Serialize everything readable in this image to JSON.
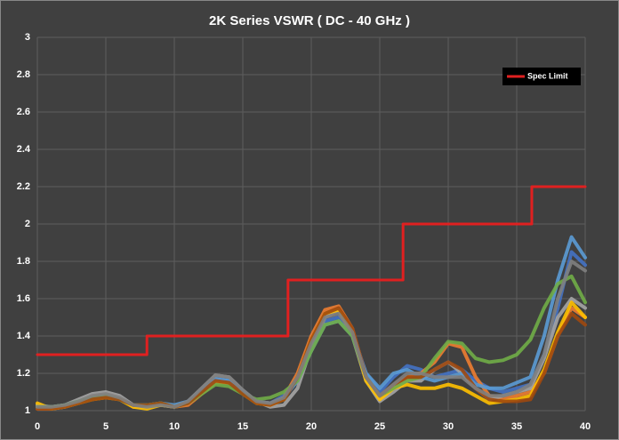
{
  "chart_data": {
    "type": "line",
    "title": "2K Series VSWR ( DC - 40 GHz )",
    "x": [
      0,
      1,
      2,
      3,
      4,
      5,
      6,
      7,
      8,
      9,
      10,
      11,
      12,
      13,
      14,
      15,
      16,
      17,
      18,
      19,
      20,
      21,
      22,
      23,
      24,
      25,
      26,
      27,
      28,
      29,
      30,
      31,
      32,
      33,
      34,
      35,
      36,
      37,
      38,
      39,
      40
    ],
    "xlim": [
      0,
      40
    ],
    "xticks": [
      0,
      5,
      10,
      15,
      20,
      25,
      30,
      35,
      40
    ],
    "ylim": [
      1,
      3
    ],
    "yticks": [
      1,
      1.2,
      1.4,
      1.6,
      1.8,
      2,
      2.2,
      2.4,
      2.6,
      2.8,
      3
    ],
    "grid": true,
    "legend": "top-right",
    "series": [
      {
        "color": "#4472c4",
        "values": [
          1.02,
          1.01,
          1.02,
          1.04,
          1.07,
          1.08,
          1.07,
          1.03,
          1.03,
          1.04,
          1.02,
          1.04,
          1.1,
          1.17,
          1.16,
          1.1,
          1.04,
          1.04,
          1.08,
          1.18,
          1.36,
          1.48,
          1.5,
          1.42,
          1.2,
          1.1,
          1.18,
          1.24,
          1.22,
          1.18,
          1.2,
          1.22,
          1.16,
          1.12,
          1.1,
          1.12,
          1.14,
          1.3,
          1.55,
          1.85,
          1.78
        ]
      },
      {
        "color": "#ed7d31",
        "values": [
          1.01,
          1.01,
          1.02,
          1.05,
          1.08,
          1.09,
          1.07,
          1.02,
          1.02,
          1.04,
          1.02,
          1.03,
          1.09,
          1.15,
          1.15,
          1.1,
          1.05,
          1.04,
          1.07,
          1.2,
          1.4,
          1.54,
          1.56,
          1.44,
          1.18,
          1.06,
          1.12,
          1.18,
          1.2,
          1.26,
          1.36,
          1.34,
          1.18,
          1.08,
          1.06,
          1.08,
          1.1,
          1.2,
          1.4,
          1.55,
          1.5
        ]
      },
      {
        "color": "#a5a5a5",
        "values": [
          1.03,
          1.02,
          1.03,
          1.06,
          1.09,
          1.1,
          1.08,
          1.03,
          1.02,
          1.03,
          1.02,
          1.05,
          1.12,
          1.19,
          1.18,
          1.11,
          1.05,
          1.02,
          1.03,
          1.12,
          1.34,
          1.5,
          1.54,
          1.4,
          1.16,
          1.05,
          1.1,
          1.16,
          1.16,
          1.22,
          1.26,
          1.2,
          1.12,
          1.06,
          1.08,
          1.1,
          1.12,
          1.28,
          1.5,
          1.6,
          1.55
        ]
      },
      {
        "color": "#ffc000",
        "values": [
          1.04,
          1.01,
          1.02,
          1.04,
          1.06,
          1.07,
          1.06,
          1.02,
          1.01,
          1.03,
          1.02,
          1.04,
          1.1,
          1.16,
          1.15,
          1.09,
          1.04,
          1.03,
          1.06,
          1.18,
          1.38,
          1.52,
          1.54,
          1.42,
          1.16,
          1.06,
          1.12,
          1.14,
          1.12,
          1.12,
          1.14,
          1.12,
          1.08,
          1.04,
          1.05,
          1.06,
          1.08,
          1.22,
          1.42,
          1.58,
          1.5
        ]
      },
      {
        "color": "#5b9bd5",
        "values": [
          1.02,
          1.02,
          1.03,
          1.05,
          1.07,
          1.08,
          1.06,
          1.03,
          1.03,
          1.04,
          1.03,
          1.05,
          1.11,
          1.17,
          1.16,
          1.1,
          1.05,
          1.04,
          1.07,
          1.16,
          1.32,
          1.46,
          1.48,
          1.4,
          1.2,
          1.12,
          1.2,
          1.22,
          1.18,
          1.16,
          1.18,
          1.2,
          1.14,
          1.12,
          1.12,
          1.15,
          1.18,
          1.4,
          1.7,
          1.93,
          1.82
        ]
      },
      {
        "color": "#70ad47",
        "values": [
          1.02,
          1.02,
          1.03,
          1.05,
          1.07,
          1.08,
          1.06,
          1.03,
          1.03,
          1.04,
          1.02,
          1.04,
          1.09,
          1.14,
          1.13,
          1.09,
          1.06,
          1.07,
          1.1,
          1.16,
          1.32,
          1.46,
          1.48,
          1.4,
          1.18,
          1.08,
          1.12,
          1.16,
          1.18,
          1.28,
          1.37,
          1.36,
          1.28,
          1.26,
          1.27,
          1.3,
          1.38,
          1.55,
          1.68,
          1.72,
          1.58
        ]
      },
      {
        "color": "#9e480e",
        "values": [
          1.01,
          1.01,
          1.02,
          1.04,
          1.06,
          1.07,
          1.06,
          1.03,
          1.03,
          1.04,
          1.02,
          1.04,
          1.1,
          1.16,
          1.15,
          1.09,
          1.04,
          1.03,
          1.06,
          1.18,
          1.38,
          1.52,
          1.55,
          1.44,
          1.18,
          1.08,
          1.14,
          1.18,
          1.18,
          1.22,
          1.26,
          1.22,
          1.12,
          1.06,
          1.05,
          1.05,
          1.06,
          1.2,
          1.4,
          1.52,
          1.46
        ]
      },
      {
        "color": "#7f7f7f",
        "values": [
          1.02,
          1.02,
          1.03,
          1.05,
          1.08,
          1.09,
          1.07,
          1.03,
          1.02,
          1.03,
          1.02,
          1.05,
          1.12,
          1.19,
          1.18,
          1.11,
          1.05,
          1.04,
          1.07,
          1.18,
          1.36,
          1.5,
          1.52,
          1.42,
          1.18,
          1.08,
          1.14,
          1.2,
          1.2,
          1.18,
          1.18,
          1.18,
          1.12,
          1.08,
          1.08,
          1.1,
          1.14,
          1.3,
          1.6,
          1.8,
          1.75
        ]
      },
      {
        "name": "Spec Limit",
        "color": "#e02020",
        "x": [
          0,
          8,
          8,
          18.3,
          18.3,
          26.7,
          26.7,
          36.1,
          36.1,
          40
        ],
        "values": [
          1.3,
          1.3,
          1.4,
          1.4,
          1.7,
          1.7,
          2.0,
          2.0,
          2.2,
          2.2
        ]
      }
    ]
  }
}
